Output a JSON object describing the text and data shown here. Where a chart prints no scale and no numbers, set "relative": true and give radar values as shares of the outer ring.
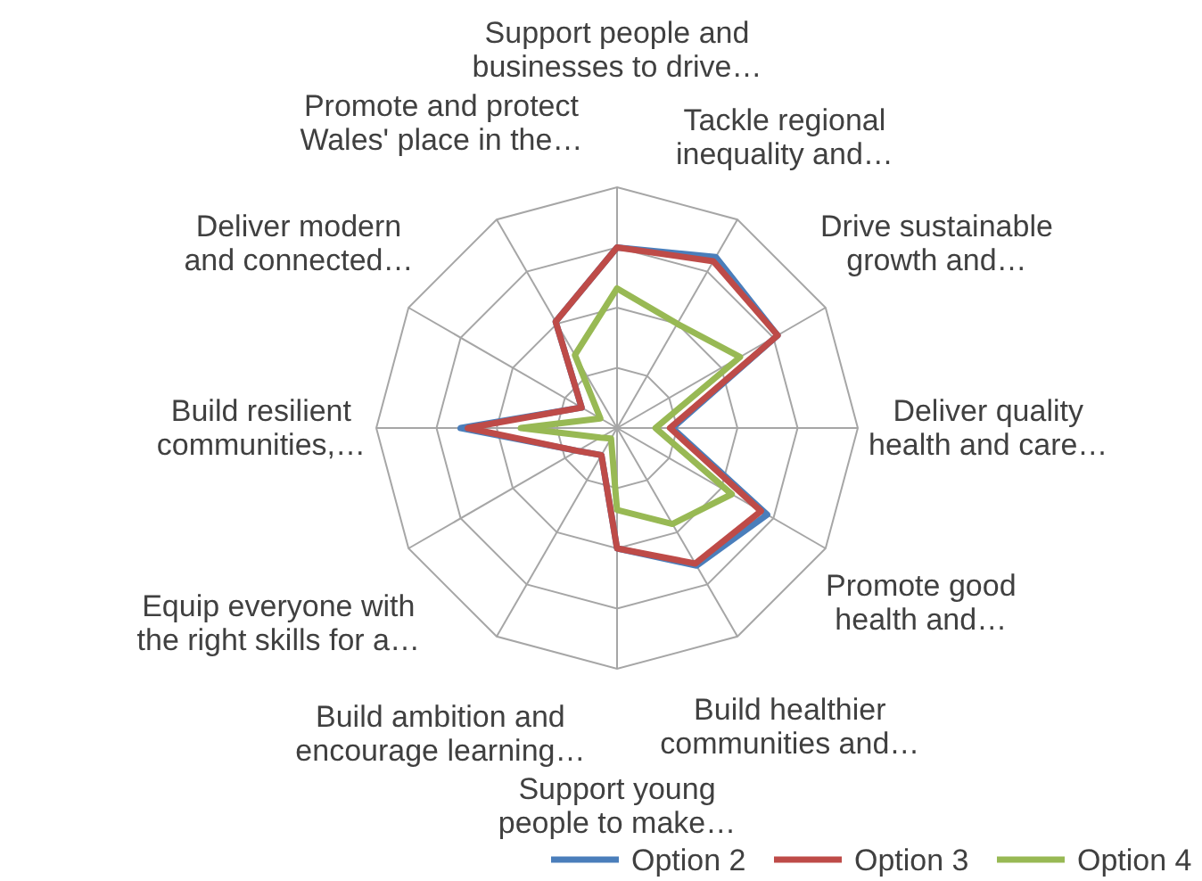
{
  "chart_data": {
    "type": "radar",
    "relative": true,
    "legend": "bottom",
    "grid": true,
    "categories": [
      "Support people and businesses to drive…",
      "Tackle regional inequality and…",
      "Drive sustainable growth and…",
      "Deliver quality health and care…",
      "Promote good health and…",
      "Build healthier communities and…",
      "Support young people to make…",
      "Build ambition and encourage learning…",
      "Equip everyone with the right skills for a…",
      "Build resilient communities,…",
      "Deliver modern and connected…",
      "Promote and protect Wales' place in the…"
    ],
    "series": [
      {
        "name": "Option 2",
        "color": "#4a7ebb",
        "values": [
          0.75,
          0.82,
          0.77,
          0.23,
          0.72,
          0.66,
          0.5,
          0.13,
          0.19,
          0.65,
          0.17,
          0.51
        ]
      },
      {
        "name": "Option 3",
        "color": "#be4b48",
        "values": [
          0.75,
          0.8,
          0.77,
          0.22,
          0.69,
          0.65,
          0.5,
          0.13,
          0.19,
          0.62,
          0.17,
          0.51
        ]
      },
      {
        "name": "Option 4",
        "color": "#98b954",
        "values": [
          0.58,
          0.5,
          0.59,
          0.16,
          0.55,
          0.46,
          0.34,
          0.05,
          0.08,
          0.4,
          0.08,
          0.35
        ]
      }
    ]
  }
}
